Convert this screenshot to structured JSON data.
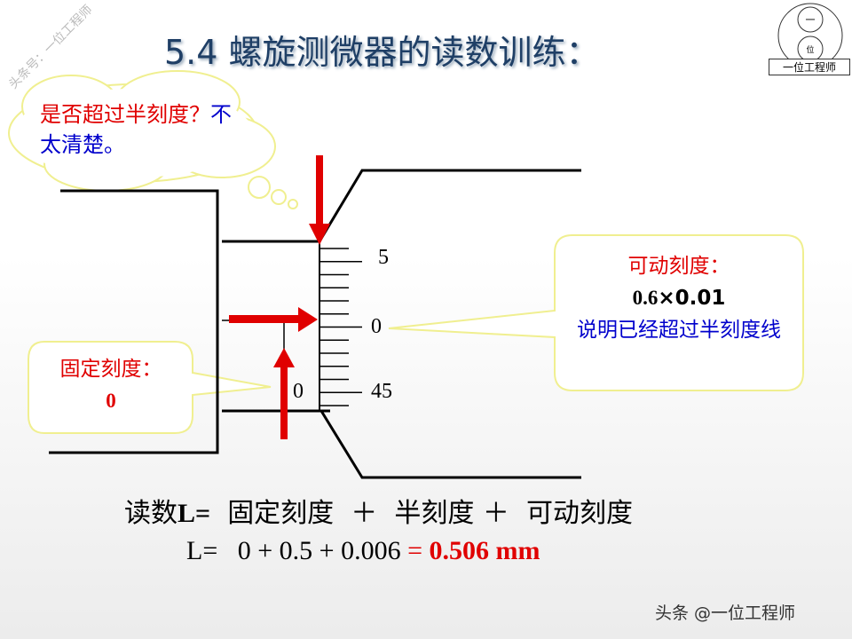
{
  "title": "5.4 螺旋测微器的读数训练：",
  "watermark": "头条号：一位工程师",
  "logo": {
    "text": "一位工程师",
    "glyphs": [
      "一",
      "位"
    ]
  },
  "cloud": {
    "red": "是否超过半刻度？",
    "blue": "不太清楚。"
  },
  "scale_labels": {
    "top": "5",
    "middle": "0",
    "bottom": "45",
    "fixed": "0"
  },
  "right_callout": {
    "title": "可动刻度：",
    "value_a": "0.6",
    "times": "×",
    "value_b": "0.01",
    "note": "说明已经超过半刻度线"
  },
  "left_callout": {
    "title": "固定刻度：",
    "value": "0"
  },
  "formula": {
    "line1": {
      "lead": "读数",
      "var": "L=",
      "t1": "固定刻度",
      "plus1": "＋",
      "t2": "半刻度",
      "plus2": "＋",
      "t3": "可动刻度"
    },
    "line2": {
      "expr": "L=   0 + 0.5 + 0.006 ",
      "eq": "= ",
      "result": "0.506 mm"
    }
  },
  "footer": "头条 @一位工程师",
  "colors": {
    "title": "#1f3f66",
    "red": "#e00000",
    "blue": "#0000cc",
    "callout_border": "#f0f080"
  }
}
